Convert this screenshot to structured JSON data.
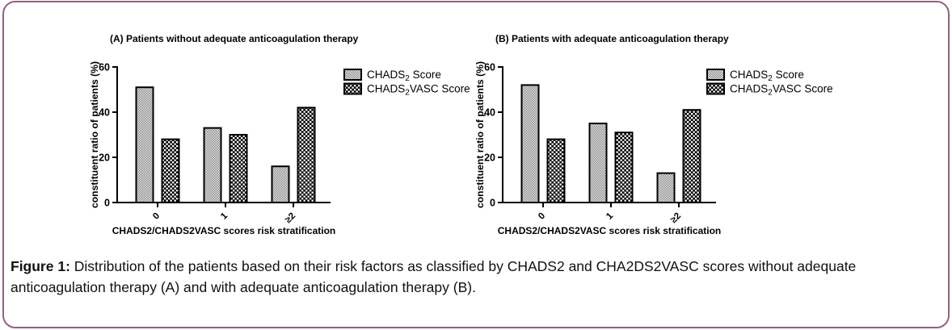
{
  "figure": {
    "caption_label": "Figure 1:",
    "caption_text": " Distribution of the patients based on their risk factors as classified by CHADS2 and CHA2DS2VASC scores without adequate anticoagulation therapy (A) and with adequate anticoagulation therapy (B).",
    "border_color": "#91617f"
  },
  "chart_data": [
    {
      "type": "bar",
      "title": "(A) Patients without adequate anticoagulation therapy",
      "xlabel": "CHADS2/CHADS2VASC scores risk stratification",
      "ylabel": "constituent ratio of patients (%)",
      "ylim": [
        0,
        60
      ],
      "yticks": [
        0,
        20,
        40,
        60
      ],
      "categories": [
        "0",
        "1",
        "≥2"
      ],
      "grid": false,
      "legend_position": "right",
      "series": [
        {
          "name": "CHADS2 Score",
          "label_parts": [
            {
              "t": "CHADS"
            },
            {
              "t": "2",
              "sub": true
            },
            {
              "t": " Score"
            }
          ],
          "pattern": "gray-check",
          "values": [
            51,
            33,
            16
          ]
        },
        {
          "name": "CHADS2VASC Score",
          "label_parts": [
            {
              "t": "CHADS"
            },
            {
              "t": "2",
              "sub": true
            },
            {
              "t": "VASC Score"
            }
          ],
          "pattern": "bw-check",
          "values": [
            28,
            30,
            42
          ]
        }
      ]
    },
    {
      "type": "bar",
      "title": "(B) Patients with adequate anticoagulation therapy",
      "xlabel": "CHADS2/CHADS2VASC scores risk stratification",
      "ylabel": "constituent ratio of patients (%)",
      "ylim": [
        0,
        60
      ],
      "yticks": [
        0,
        20,
        40,
        60
      ],
      "categories": [
        "0",
        "1",
        "≥2"
      ],
      "grid": false,
      "legend_position": "right",
      "series": [
        {
          "name": "CHADS2 Score",
          "label_parts": [
            {
              "t": "CHADS"
            },
            {
              "t": "2",
              "sub": true
            },
            {
              "t": " Score"
            }
          ],
          "pattern": "gray-check",
          "values": [
            52,
            35,
            13
          ]
        },
        {
          "name": "CHADS2VASC Score",
          "label_parts": [
            {
              "t": "CHADS"
            },
            {
              "t": "2",
              "sub": true
            },
            {
              "t": "VASC Score"
            }
          ],
          "pattern": "bw-check",
          "values": [
            28,
            31,
            41
          ]
        }
      ]
    }
  ],
  "pattern_colors": {
    "gray_dark": "#8d8d8d",
    "gray_light": "#e3e3e3",
    "check_dark": "#000000",
    "check_light": "#ffffff"
  }
}
